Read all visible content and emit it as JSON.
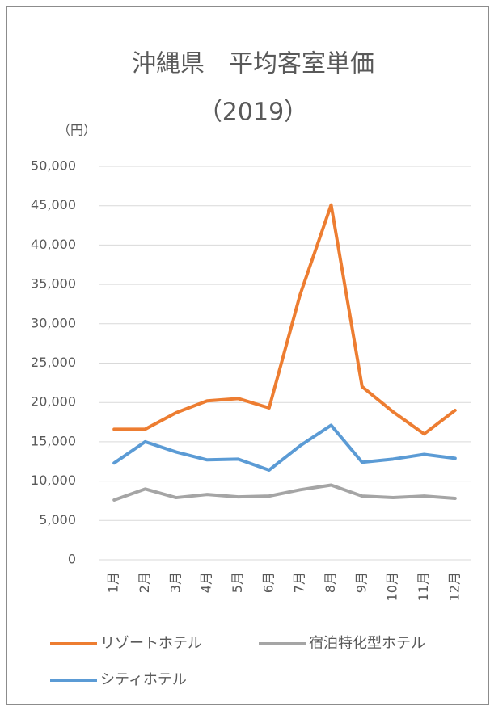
{
  "chart_data": {
    "type": "line",
    "title": "沖縄県　平均客室単価",
    "subtitle": "（2019）",
    "y_label": "（円）",
    "categories": [
      "1月",
      "2月",
      "3月",
      "4月",
      "5月",
      "6月",
      "7月",
      "8月",
      "9月",
      "10月",
      "11月",
      "12月"
    ],
    "series": [
      {
        "name": "リゾートホテル",
        "color": "#ed7d31",
        "values": [
          16600,
          16600,
          18700,
          20200,
          20500,
          19300,
          33700,
          45100,
          22000,
          18800,
          16000,
          19000
        ]
      },
      {
        "name": "宿泊特化型ホテル",
        "color": "#a5a5a5",
        "values": [
          7600,
          9000,
          7900,
          8300,
          8000,
          8100,
          8900,
          9500,
          8100,
          7900,
          8100,
          7800
        ]
      },
      {
        "name": "シティホテル",
        "color": "#5b9bd5",
        "values": [
          12300,
          15000,
          13700,
          12700,
          12800,
          11400,
          14500,
          17100,
          12400,
          12800,
          13400,
          12900
        ]
      }
    ],
    "ylim": [
      0,
      50000
    ],
    "yticks": [
      0,
      {
        "value": 5000,
        "label": "5,000"
      },
      {
        "value": 10000,
        "label": "10,000"
      },
      {
        "value": 15000,
        "label": "15,000"
      },
      {
        "value": 20000,
        "label": "20,000"
      },
      {
        "value": 25000,
        "label": "25,000"
      },
      {
        "value": 30000,
        "label": "30,000"
      },
      {
        "value": 35000,
        "label": "35,000"
      },
      {
        "value": 40000,
        "label": "40,000"
      },
      {
        "value": 45000,
        "label": "45,000"
      },
      {
        "value": 50000,
        "label": "50,000"
      }
    ],
    "grid": true
  }
}
